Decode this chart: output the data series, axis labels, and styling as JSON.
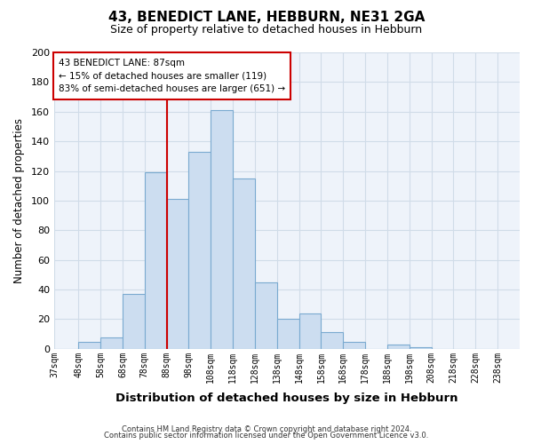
{
  "title": "43, BENEDICT LANE, HEBBURN, NE31 2GA",
  "subtitle": "Size of property relative to detached houses in Hebburn",
  "xlabel": "Distribution of detached houses by size in Hebburn",
  "ylabel": "Number of detached properties",
  "bin_edges": [
    37,
    48,
    58,
    68,
    78,
    88,
    98,
    108,
    118,
    128,
    138,
    148,
    158,
    168,
    178,
    188,
    198,
    208,
    218,
    228,
    238
  ],
  "bar_heights": [
    0,
    5,
    8,
    37,
    119,
    101,
    133,
    161,
    115,
    45,
    20,
    24,
    11,
    5,
    0,
    3,
    1,
    0,
    0,
    0
  ],
  "bar_color": "#ccddf0",
  "bar_edge_color": "#7aaad0",
  "vline_x": 88,
  "vline_color": "#cc0000",
  "ylim": [
    0,
    200
  ],
  "yticks": [
    0,
    20,
    40,
    60,
    80,
    100,
    120,
    140,
    160,
    180,
    200
  ],
  "annotation_title": "43 BENEDICT LANE: 87sqm",
  "annotation_line1": "← 15% of detached houses are smaller (119)",
  "annotation_line2": "83% of semi-detached houses are larger (651) →",
  "annotation_box_facecolor": "#ffffff",
  "annotation_box_edgecolor": "#cc0000",
  "grid_color": "#d0dce8",
  "background_color": "#ffffff",
  "plot_bg_color": "#eef3fa",
  "footer_line1": "Contains HM Land Registry data © Crown copyright and database right 2024.",
  "footer_line2": "Contains public sector information licensed under the Open Government Licence v3.0."
}
